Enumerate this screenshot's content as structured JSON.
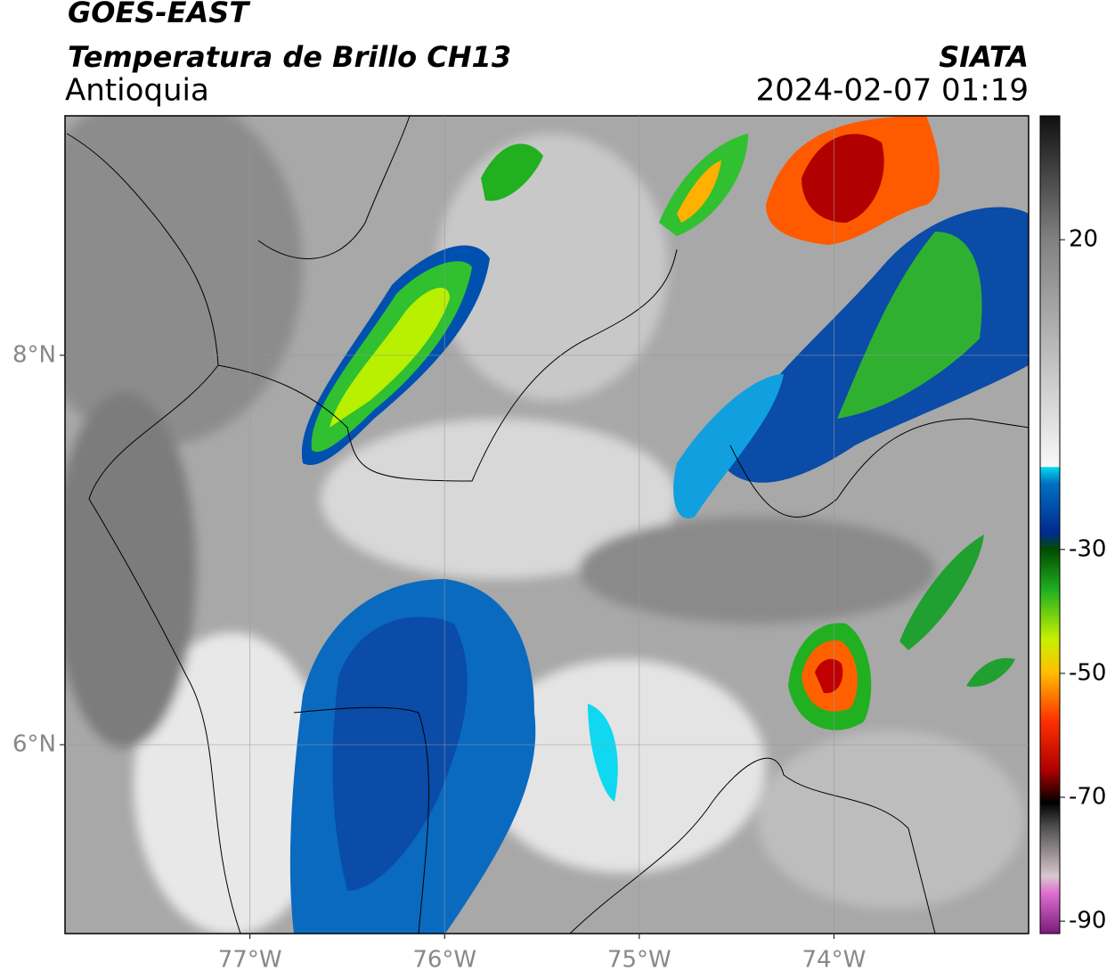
{
  "header": {
    "title": "GOES-EAST",
    "subtitle": "Temperatura de Brillo CH13",
    "region": "Antioquia",
    "source": "SIATA",
    "datetime": "2024-02-07 01:19"
  },
  "map": {
    "xlim": [
      -77.95,
      -73
    ],
    "ylim": [
      5.03,
      9.23
    ],
    "xticks": [
      {
        "value": -77,
        "label": "77°W"
      },
      {
        "value": -76,
        "label": "76°W"
      },
      {
        "value": -75,
        "label": "75°W"
      },
      {
        "value": -74,
        "label": "74°W"
      }
    ],
    "yticks": [
      {
        "value": 6,
        "label": "6°N"
      },
      {
        "value": 8,
        "label": "8°N"
      }
    ],
    "grid": true
  },
  "colorbar": {
    "lim": [
      -92,
      40
    ],
    "ticks": [
      20,
      -30,
      -50,
      -70,
      -90
    ]
  }
}
